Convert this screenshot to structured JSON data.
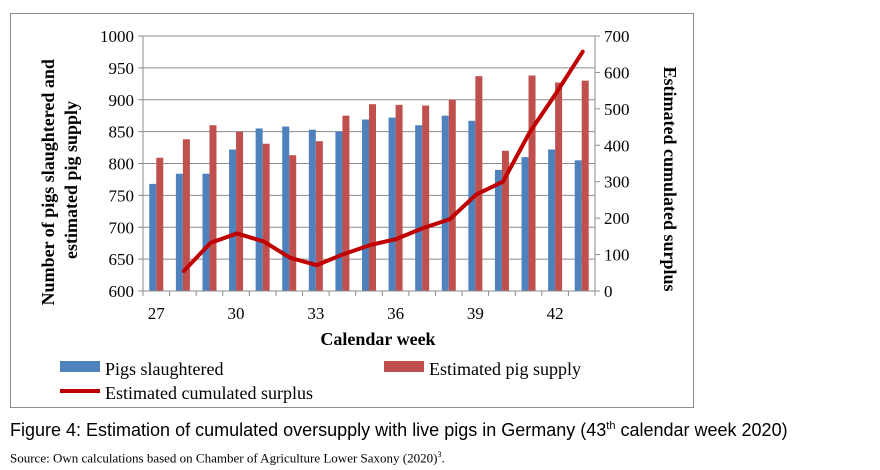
{
  "chart_data": {
    "type": "bar",
    "xlabel": "Calendar week",
    "ylabel": "Number of pigs slaughtered and estimated pig supply",
    "ylabel_lines": [
      "Number of pigs slaughtered and",
      "estimated pig supply"
    ],
    "y2label": "Estimated cumulated surplus",
    "weeks": [
      27,
      28,
      29,
      30,
      31,
      32,
      33,
      34,
      35,
      36,
      37,
      38,
      39,
      40,
      41,
      42,
      43
    ],
    "x_tick_labels": [
      "27",
      "30",
      "33",
      "36",
      "39",
      "42"
    ],
    "ylim": [
      600,
      1000
    ],
    "y_ticks": [
      "600",
      "650",
      "700",
      "750",
      "800",
      "850",
      "900",
      "950",
      "1000"
    ],
    "y2lim": [
      0,
      700
    ],
    "y2_ticks": [
      "0",
      "100",
      "200",
      "300",
      "400",
      "500",
      "600",
      "700"
    ],
    "grid": "horizontal",
    "legend_position": "bottom",
    "series": [
      {
        "name": "Pigs slaughtered",
        "kind": "bar",
        "axis": "left",
        "color": "#4f81bd",
        "values": [
          768,
          784,
          784,
          822,
          855,
          858,
          853,
          850,
          869,
          872,
          860,
          875,
          867,
          790,
          810,
          822,
          805
        ]
      },
      {
        "name": "Estimated pig supply",
        "kind": "bar",
        "axis": "left",
        "color": "#c0504d",
        "values": [
          809,
          838,
          860,
          850,
          831,
          813,
          835,
          875,
          893,
          892,
          891,
          900,
          937,
          820,
          938,
          927,
          930
        ]
      },
      {
        "name": "Estimated cumulated surplus",
        "kind": "line",
        "axis": "right",
        "color": "#c00000",
        "x": [
          28,
          29,
          30,
          31,
          32,
          33,
          34,
          35,
          36,
          37,
          38,
          39,
          40,
          41,
          42,
          43
        ],
        "values": [
          55,
          132,
          158,
          136,
          91,
          71,
          101,
          126,
          143,
          173,
          197,
          265,
          300,
          435,
          543,
          657
        ]
      }
    ]
  },
  "caption": {
    "prefix": "Figure 4: Estimation of cumulated oversupply with live pigs in Germany (43",
    "sup": "th",
    "suffix": " calendar week 2020)"
  },
  "source": {
    "text": "Source: Own calculations based on Chamber of Agriculture Lower Saxony (2020)",
    "sup": "3",
    "end": "."
  }
}
